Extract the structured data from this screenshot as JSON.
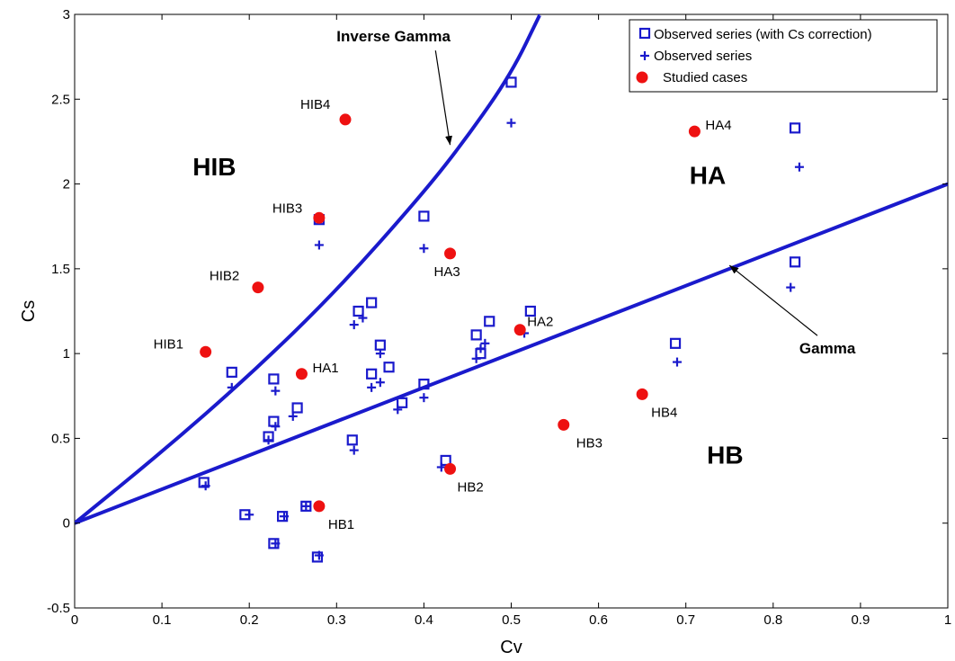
{
  "chart_data": {
    "type": "scatter",
    "title": "",
    "xlabel": "Cv",
    "ylabel": "Cs",
    "xlim": [
      0,
      1
    ],
    "ylim": [
      -0.5,
      3
    ],
    "xticks": [
      0,
      0.1,
      0.2,
      0.3,
      0.4,
      0.5,
      0.6,
      0.7,
      0.8,
      0.9,
      1
    ],
    "yticks": [
      -0.5,
      0,
      0.5,
      1,
      1.5,
      2,
      2.5,
      3
    ],
    "xtick_labels": [
      "0",
      "0.1",
      "0.2",
      "0.3",
      "0.4",
      "0.5",
      "0.6",
      "0.7",
      "0.8",
      "0.9",
      "1"
    ],
    "ytick_labels": [
      "-0.5",
      "0",
      "0.5",
      "1",
      "1.5",
      "2",
      "2.5",
      "3"
    ],
    "grid": false,
    "legend_position": "top-right",
    "colors": {
      "marker_blue": "#1a1acc",
      "line_blue": "#1a1acc",
      "case_red": "#ee1111"
    },
    "series": [
      {
        "name": "Observed series (with Cs correction)",
        "marker": "square",
        "points": [
          [
            0.5,
            2.6
          ],
          [
            0.825,
            2.33
          ],
          [
            0.4,
            1.81
          ],
          [
            0.28,
            1.79
          ],
          [
            0.825,
            1.54
          ],
          [
            0.34,
            1.3
          ],
          [
            0.325,
            1.25
          ],
          [
            0.522,
            1.25
          ],
          [
            0.475,
            1.19
          ],
          [
            0.46,
            1.11
          ],
          [
            0.688,
            1.06
          ],
          [
            0.35,
            1.05
          ],
          [
            0.465,
            1.0
          ],
          [
            0.18,
            0.89
          ],
          [
            0.36,
            0.92
          ],
          [
            0.34,
            0.88
          ],
          [
            0.228,
            0.85
          ],
          [
            0.4,
            0.82
          ],
          [
            0.375,
            0.71
          ],
          [
            0.255,
            0.68
          ],
          [
            0.228,
            0.6
          ],
          [
            0.222,
            0.51
          ],
          [
            0.318,
            0.49
          ],
          [
            0.425,
            0.37
          ],
          [
            0.148,
            0.24
          ],
          [
            0.265,
            0.1
          ],
          [
            0.195,
            0.05
          ],
          [
            0.238,
            0.04
          ],
          [
            0.228,
            -0.12
          ],
          [
            0.278,
            -0.2
          ]
        ]
      },
      {
        "name": "Observed series",
        "marker": "plus",
        "points": [
          [
            0.5,
            2.36
          ],
          [
            0.83,
            2.1
          ],
          [
            0.4,
            1.62
          ],
          [
            0.28,
            1.64
          ],
          [
            0.82,
            1.39
          ],
          [
            0.33,
            1.21
          ],
          [
            0.32,
            1.17
          ],
          [
            0.515,
            1.12
          ],
          [
            0.47,
            1.06
          ],
          [
            0.465,
            1.03
          ],
          [
            0.69,
            0.95
          ],
          [
            0.35,
            1.0
          ],
          [
            0.46,
            0.97
          ],
          [
            0.18,
            0.8
          ],
          [
            0.35,
            0.83
          ],
          [
            0.34,
            0.8
          ],
          [
            0.23,
            0.78
          ],
          [
            0.4,
            0.74
          ],
          [
            0.37,
            0.67
          ],
          [
            0.25,
            0.63
          ],
          [
            0.23,
            0.57
          ],
          [
            0.222,
            0.49
          ],
          [
            0.32,
            0.43
          ],
          [
            0.42,
            0.33
          ],
          [
            0.15,
            0.22
          ],
          [
            0.265,
            0.1
          ],
          [
            0.2,
            0.05
          ],
          [
            0.24,
            0.04
          ],
          [
            0.23,
            -0.12
          ],
          [
            0.28,
            -0.19
          ]
        ]
      },
      {
        "name": "Studied cases",
        "marker": "dot",
        "points": [
          {
            "label": "HIB1",
            "x": 0.15,
            "y": 1.01
          },
          {
            "label": "HIB2",
            "x": 0.21,
            "y": 1.39
          },
          {
            "label": "HIB3",
            "x": 0.28,
            "y": 1.8
          },
          {
            "label": "HIB4",
            "x": 0.31,
            "y": 2.38
          },
          {
            "label": "HA1",
            "x": 0.26,
            "y": 0.88
          },
          {
            "label": "HA2",
            "x": 0.51,
            "y": 1.14
          },
          {
            "label": "HA3",
            "x": 0.43,
            "y": 1.59
          },
          {
            "label": "HA4",
            "x": 0.71,
            "y": 2.31
          },
          {
            "label": "HB1",
            "x": 0.28,
            "y": 0.1
          },
          {
            "label": "HB2",
            "x": 0.43,
            "y": 0.32
          },
          {
            "label": "HB3",
            "x": 0.56,
            "y": 0.58
          },
          {
            "label": "HB4",
            "x": 0.65,
            "y": 0.76
          }
        ]
      }
    ],
    "curves": [
      {
        "label": "Gamma",
        "formula": "Cs = 2*Cv",
        "x_range": [
          0,
          1
        ]
      },
      {
        "label": "Inverse Gamma",
        "formula": "Cs = 4*Cv/(1-Cv^2)... (curve reaching Cs=3 near Cv=0.53)",
        "points": [
          [
            0,
            0
          ],
          [
            0.1,
            0.42
          ],
          [
            0.2,
            0.87
          ],
          [
            0.3,
            1.37
          ],
          [
            0.4,
            1.95
          ],
          [
            0.45,
            2.28
          ],
          [
            0.5,
            2.65
          ],
          [
            0.533,
            3.0
          ]
        ]
      }
    ],
    "regions": [
      {
        "label": "HIB",
        "x": 0.16,
        "y": 2.05
      },
      {
        "label": "HA",
        "x": 0.725,
        "y": 2.0
      },
      {
        "label": "HB",
        "x": 0.745,
        "y": 0.35
      }
    ],
    "annotations": [
      {
        "label": "Inverse Gamma",
        "text_x": 0.3,
        "text_y": 2.84,
        "arrow_to": [
          0.43,
          2.23
        ]
      },
      {
        "label": "Gamma",
        "text_x": 0.83,
        "text_y": 1.0,
        "arrow_to": [
          0.75,
          1.52
        ]
      }
    ]
  }
}
